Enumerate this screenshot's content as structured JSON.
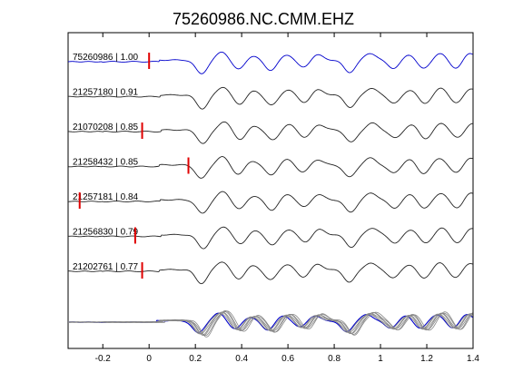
{
  "chart_data": {
    "type": "line",
    "title": "75260986.NC.CMM.EHZ",
    "xlabel": "",
    "ylabel": "",
    "xlim": [
      -0.35,
      1.4
    ],
    "xticks": [
      -0.2,
      0,
      0.2,
      0.4,
      0.6,
      0.8,
      1,
      1.2,
      1.4
    ],
    "xtick_labels": [
      "-0.2",
      "0",
      "0.2",
      "0.4",
      "0.6",
      "0.8",
      "1",
      "1.2",
      "1.4"
    ],
    "grid": false,
    "colors": {
      "reference": "#0000cc",
      "trace": "#222222",
      "stack": "#888888",
      "pick": "#e00000"
    },
    "traces": [
      {
        "label": "75260986 | 1.00",
        "pick_time": 0.0,
        "reference": true
      },
      {
        "label": "21257180 | 0.91",
        "pick_time": null
      },
      {
        "label": "21070208 | 0.85",
        "pick_time": -0.03
      },
      {
        "label": "21258432 | 0.85",
        "pick_time": 0.17
      },
      {
        "label": "21257181 | 0.84",
        "pick_time": -0.3
      },
      {
        "label": "21256830 | 0.79",
        "pick_time": -0.06
      },
      {
        "label": "21202761 | 0.77",
        "pick_time": -0.03
      }
    ],
    "waveform": {
      "onset_time": 0.05,
      "peaks_times": [
        0.23,
        0.32,
        0.39,
        0.45,
        0.53,
        0.6,
        0.67,
        0.73,
        0.87,
        0.96,
        1.06,
        1.13,
        1.19,
        1.26,
        1.33,
        1.39
      ],
      "peaks_amps": [
        -1.0,
        0.6,
        -0.7,
        0.3,
        -0.75,
        0.4,
        -0.55,
        0.4,
        -0.9,
        0.5,
        -0.6,
        0.4,
        -0.65,
        0.5,
        -0.6,
        0.5
      ]
    }
  }
}
